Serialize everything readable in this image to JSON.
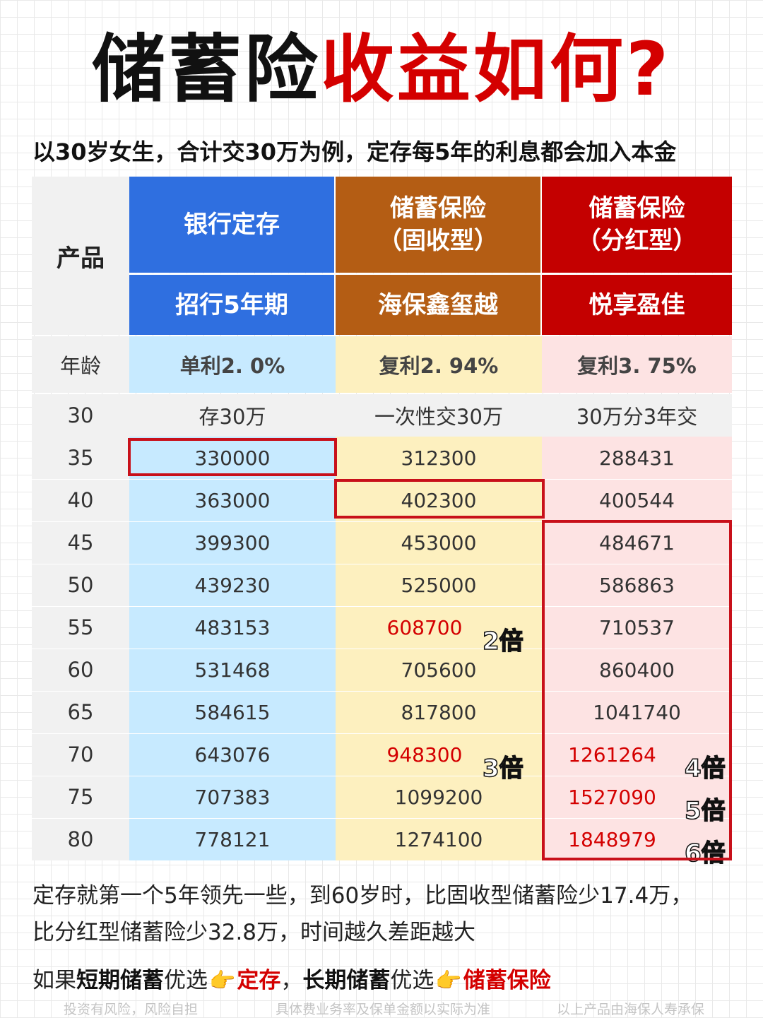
{
  "title": {
    "part1": "储蓄险",
    "part2": "收益如何?"
  },
  "subtitle": "以30岁女生，合计交30万为例，定存每5年的利息都会加入本金",
  "table": {
    "product_label": "产品",
    "age_label": "年龄",
    "columns": [
      {
        "type": "银行定存",
        "type_line2": "",
        "product": "招行5年期",
        "rate": "单利2. 0%",
        "start": "存30万",
        "header_color": "#2f6fe0"
      },
      {
        "type": "储蓄保险",
        "type_line2": "（固收型）",
        "product": "海保鑫玺越",
        "rate": "复利2. 94%",
        "start": "一次性交30万",
        "header_color": "#b45d14"
      },
      {
        "type": "储蓄保险",
        "type_line2": "（分红型）",
        "product": "悦享盈佳",
        "rate": "复利3. 75%",
        "start": "30万分3年交",
        "header_color": "#c40000"
      }
    ],
    "start_age": "30",
    "rows": [
      {
        "age": "35",
        "bank": "330000",
        "fixed": "312300",
        "dividend": "288431"
      },
      {
        "age": "40",
        "bank": "363000",
        "fixed": "402300",
        "dividend": "400544"
      },
      {
        "age": "45",
        "bank": "399300",
        "fixed": "453000",
        "dividend": "484671"
      },
      {
        "age": "50",
        "bank": "439230",
        "fixed": "525000",
        "dividend": "586863"
      },
      {
        "age": "55",
        "bank": "483153",
        "fixed": "608700",
        "dividend": "710537"
      },
      {
        "age": "60",
        "bank": "531468",
        "fixed": "705600",
        "dividend": "860400"
      },
      {
        "age": "65",
        "bank": "584615",
        "fixed": "817800",
        "dividend": "1041740"
      },
      {
        "age": "70",
        "bank": "643076",
        "fixed": "948300",
        "dividend": "1261264"
      },
      {
        "age": "75",
        "bank": "707383",
        "fixed": "1099200",
        "dividend": "1527090"
      },
      {
        "age": "80",
        "bank": "778121",
        "fixed": "1274100",
        "dividend": "1848979"
      }
    ],
    "multipliers": {
      "fixed_55": "2倍",
      "fixed_70": "3倍",
      "dividend_70": "4倍",
      "dividend_75": "5倍",
      "dividend_80": "6倍"
    }
  },
  "notes": {
    "line1": "定存就第一个5年领先一些，到60岁时，比固收型储蓄险少17.4万，",
    "line2": "比分红型储蓄险少32.8万，时间越久差距越大",
    "l3_a": "如果",
    "l3_b": "短期储蓄",
    "l3_c": "优选",
    "l3_d": "定存",
    "l3_e": "，",
    "l3_f": "长期储蓄",
    "l3_g": "优选",
    "l3_h": "储蓄保险",
    "hand_icon": "👉"
  },
  "footer": {
    "left": "投资有风险，风险自担",
    "middle": "具体费业务率及保单金额以实际为准",
    "right": "以上产品由海保人寿承保"
  },
  "colors": {
    "accent_red": "#d40000",
    "box_red": "#c8101a"
  }
}
